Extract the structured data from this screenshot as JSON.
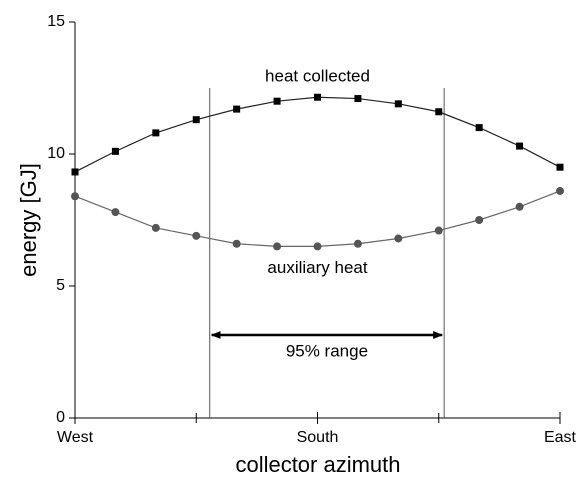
{
  "chart_data": {
    "type": "line",
    "x_label": "collector azimuth",
    "y_label": "energy [GJ]",
    "x": [
      -90,
      -75,
      -60,
      -45,
      -30,
      -15,
      0,
      15,
      30,
      45,
      60,
      75,
      90
    ],
    "series": [
      {
        "name": "heat collected",
        "color": "#000000",
        "line_color": "#222222",
        "marker": "square",
        "values": [
          9.32,
          10.1,
          10.8,
          11.3,
          11.7,
          12.0,
          12.15,
          12.1,
          11.9,
          11.6,
          11.0,
          10.3,
          9.5
        ]
      },
      {
        "name": "auxiliary heat",
        "color": "#555555",
        "line_color": "#666666",
        "marker": "circle",
        "values": [
          8.4,
          7.8,
          7.2,
          6.9,
          6.6,
          6.5,
          6.5,
          6.6,
          6.8,
          7.1,
          7.5,
          8.0,
          8.6
        ]
      }
    ],
    "xlim": [
      -90,
      90
    ],
    "xticks": [
      {
        "value": -90,
        "label": "West"
      },
      {
        "value": 0,
        "label": "South"
      },
      {
        "value": 90,
        "label": "East"
      }
    ],
    "minor_xticks": [
      -45,
      45
    ],
    "ylim": [
      0,
      15
    ],
    "yticks": [
      0,
      5,
      10,
      15
    ],
    "range_lines": [
      -40,
      47
    ],
    "range_label": "95% range"
  }
}
